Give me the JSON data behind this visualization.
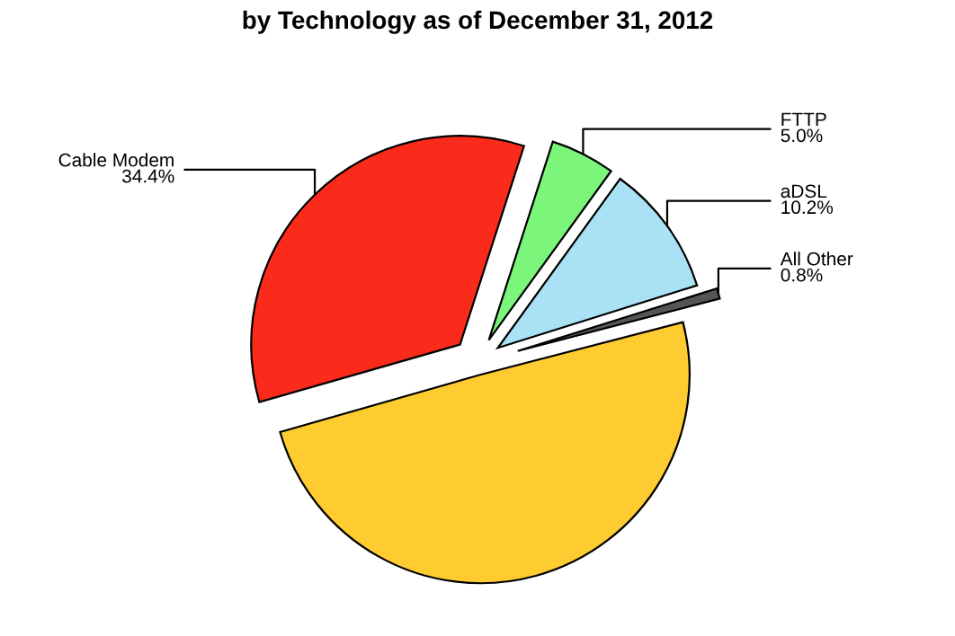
{
  "chart_data": {
    "type": "pie",
    "title": "by Technology as of December 31, 2012",
    "categories": [
      "Cable Modem",
      "FTTP",
      "aDSL",
      "All Other",
      null
    ],
    "values": [
      34.4,
      5.0,
      10.2,
      0.8,
      49.6
    ],
    "value_labels": [
      "34.4%",
      "5.0%",
      "10.2%",
      "0.8%",
      null
    ],
    "colors": [
      "#fb2b1c",
      "#7bf57a",
      "#a9e2f5",
      "#555555",
      "#fecb30"
    ]
  }
}
